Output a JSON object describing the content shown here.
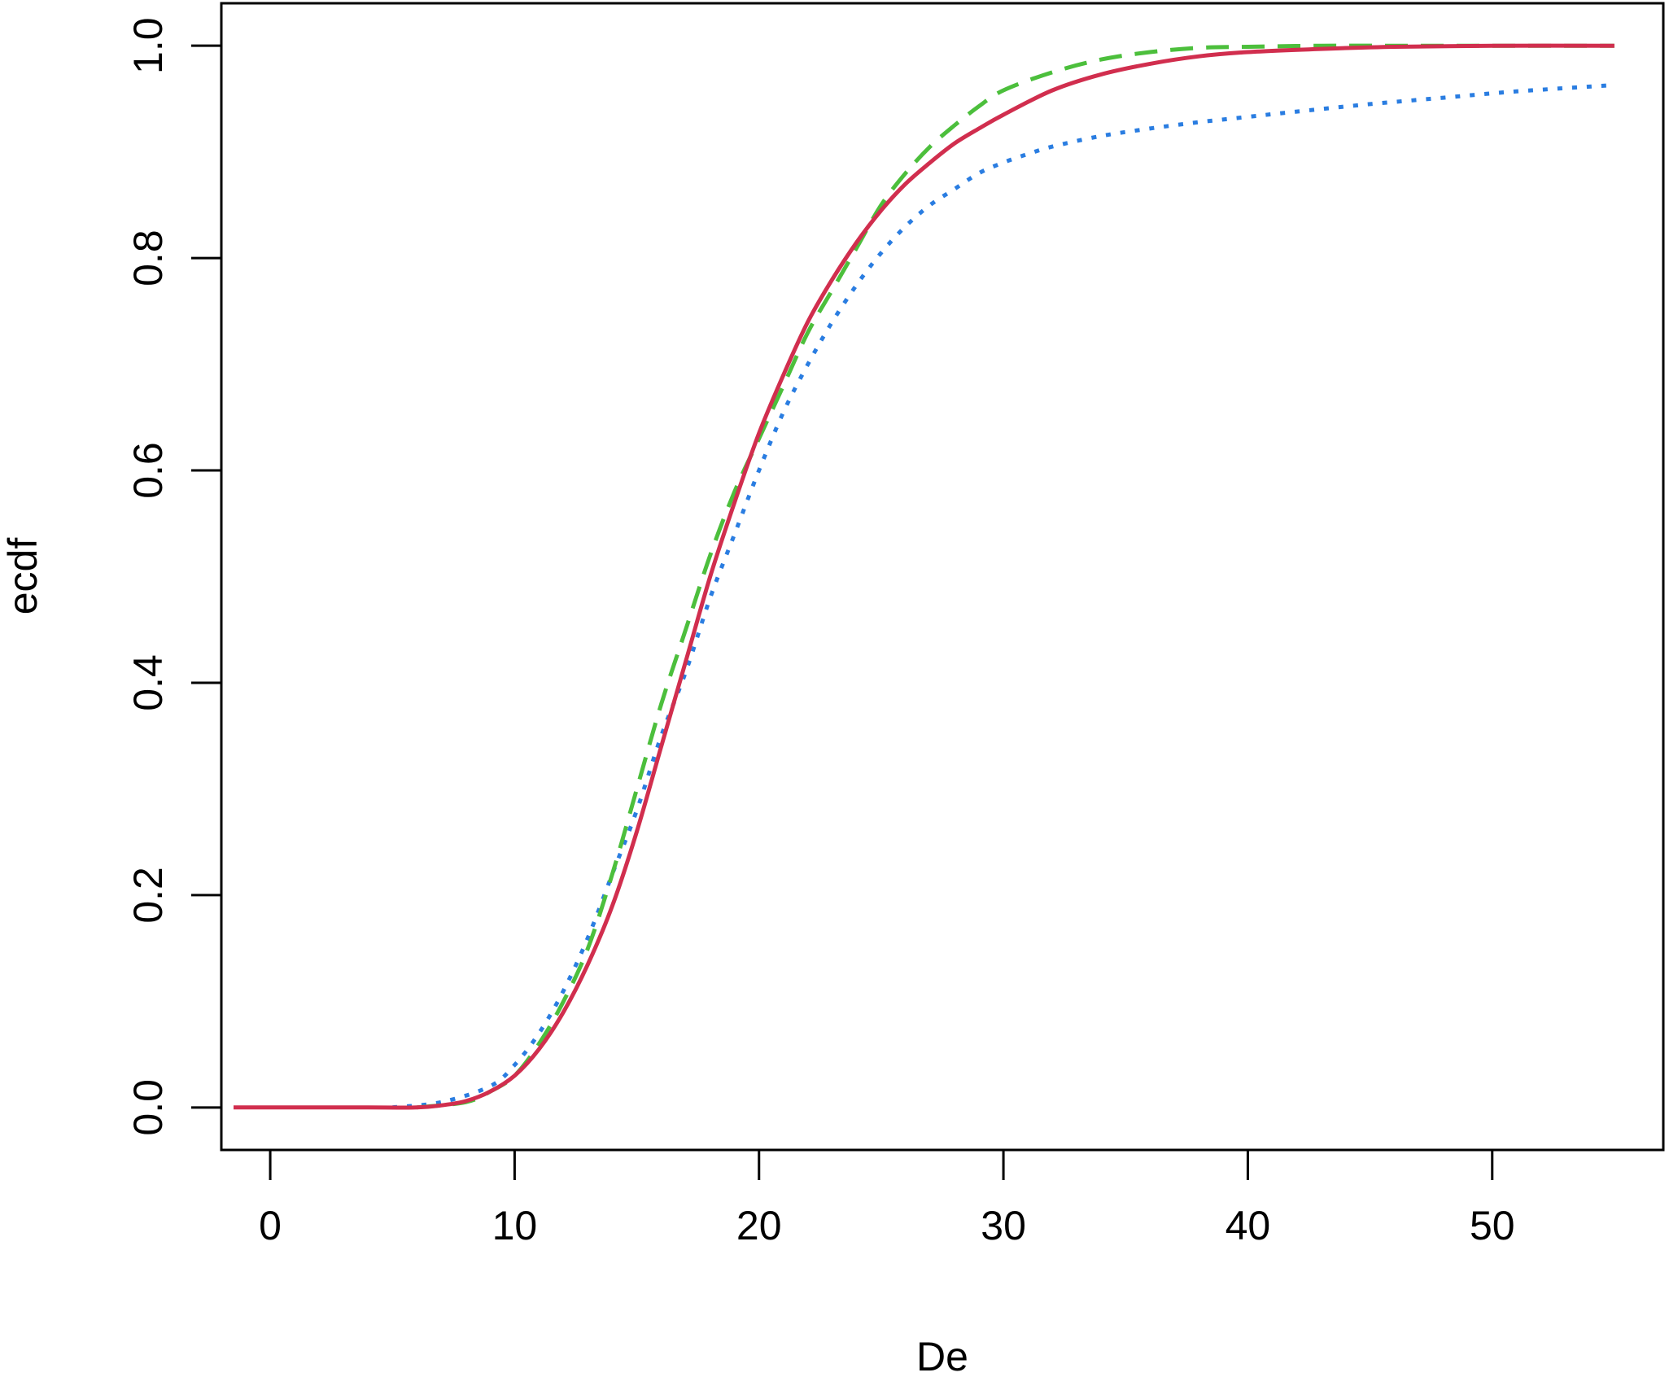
{
  "chart_data": {
    "type": "line",
    "title": "",
    "xlabel": "De",
    "ylabel": "ecdf",
    "xlim": [
      -2,
      57
    ],
    "ylim": [
      -0.04,
      1.04
    ],
    "x_ticks": [
      0,
      10,
      20,
      30,
      40,
      50
    ],
    "x_tick_labels": [
      "0",
      "10",
      "20",
      "30",
      "40",
      "50"
    ],
    "y_ticks": [
      0.0,
      0.2,
      0.4,
      0.6,
      0.8,
      1.0
    ],
    "y_tick_labels": [
      "0.0",
      "0.2",
      "0.4",
      "0.6",
      "0.8",
      "1.0"
    ],
    "grid": false,
    "legend": "none",
    "series": [
      {
        "color": "#2a7de1",
        "dash": "dotted",
        "x": [
          5,
          7,
          9,
          10,
          11,
          12,
          13,
          14,
          15,
          16,
          17,
          18,
          19,
          20,
          21,
          22,
          23,
          24,
          25,
          26,
          27,
          28,
          29,
          30,
          31,
          32,
          34,
          36,
          38,
          40,
          42,
          45,
          48,
          51,
          55
        ],
        "y": [
          0.0,
          0.005,
          0.02,
          0.04,
          0.07,
          0.11,
          0.16,
          0.22,
          0.28,
          0.35,
          0.41,
          0.48,
          0.54,
          0.6,
          0.655,
          0.7,
          0.74,
          0.775,
          0.805,
          0.83,
          0.85,
          0.865,
          0.88,
          0.89,
          0.898,
          0.905,
          0.915,
          0.922,
          0.928,
          0.933,
          0.938,
          0.945,
          0.951,
          0.957,
          0.963
        ]
      },
      {
        "color": "#4cbf3c",
        "dash": "dashed",
        "x": [
          6,
          8,
          9,
          10,
          11,
          12,
          13,
          14,
          15,
          16,
          17,
          18,
          19,
          20,
          21,
          22,
          23,
          24,
          25,
          26,
          27,
          28,
          29,
          30,
          32,
          34,
          36,
          38,
          40,
          43,
          46,
          50,
          55
        ],
        "y": [
          0.0,
          0.005,
          0.015,
          0.03,
          0.06,
          0.1,
          0.15,
          0.22,
          0.3,
          0.38,
          0.45,
          0.52,
          0.58,
          0.63,
          0.68,
          0.73,
          0.77,
          0.81,
          0.85,
          0.88,
          0.905,
          0.925,
          0.943,
          0.958,
          0.975,
          0.987,
          0.994,
          0.998,
          0.999,
          1.0,
          1.0,
          1.0,
          1.0
        ]
      },
      {
        "color": "#d12e4e",
        "dash": "solid",
        "x": [
          -1.5,
          0,
          2,
          4,
          6,
          7,
          8,
          9,
          10,
          11,
          12,
          13,
          14,
          15,
          16,
          17,
          18,
          19,
          20,
          21,
          22,
          23,
          24,
          25,
          26,
          27,
          28,
          29,
          30,
          32,
          34,
          36,
          38,
          40,
          43,
          46,
          50,
          55
        ],
        "y": [
          0.0,
          0.0,
          0.0,
          0.0,
          0.0,
          0.002,
          0.006,
          0.015,
          0.03,
          0.055,
          0.09,
          0.135,
          0.19,
          0.26,
          0.34,
          0.42,
          0.5,
          0.57,
          0.635,
          0.69,
          0.74,
          0.78,
          0.815,
          0.845,
          0.87,
          0.89,
          0.908,
          0.922,
          0.935,
          0.958,
          0.973,
          0.983,
          0.99,
          0.994,
          0.997,
          0.999,
          1.0,
          1.0
        ]
      }
    ]
  }
}
